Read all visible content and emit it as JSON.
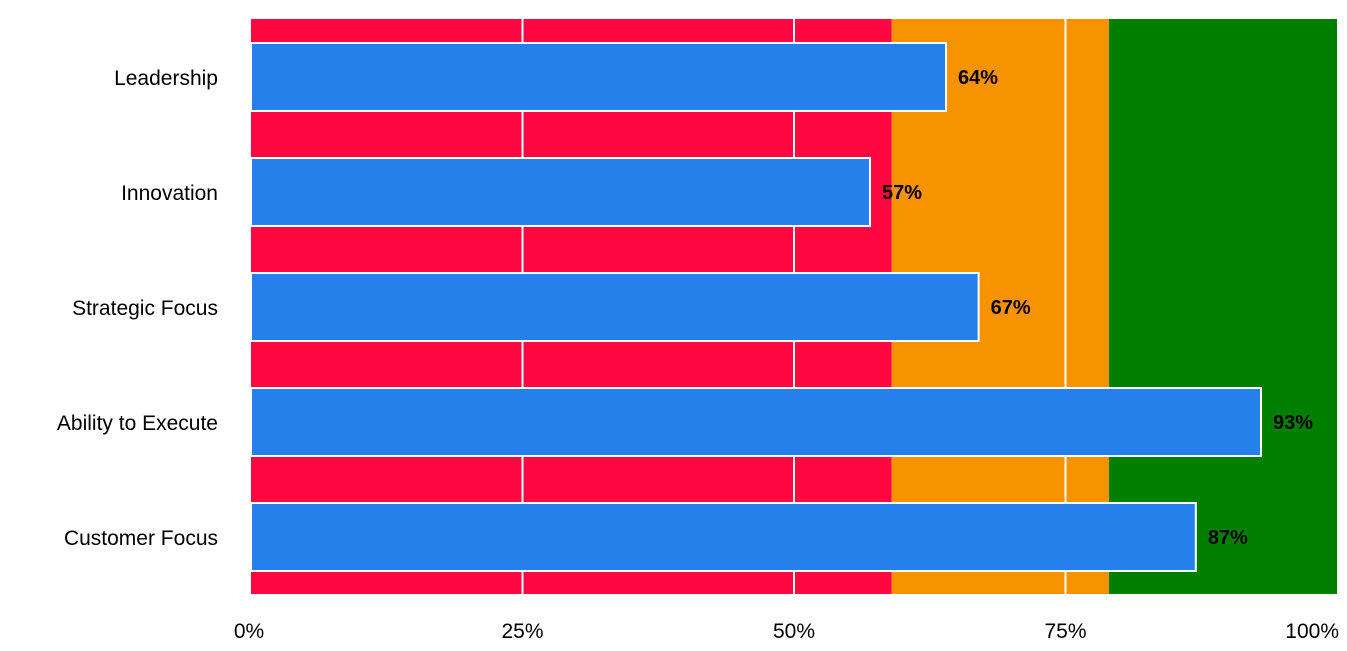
{
  "chart_data": {
    "type": "bar",
    "orientation": "horizontal",
    "title": "",
    "xlabel": "",
    "ylabel": "",
    "categories": [
      "Leadership",
      "Innovation",
      "Strategic Focus",
      "Ability to Execute",
      "Customer Focus"
    ],
    "values": [
      64,
      57,
      67,
      93,
      87
    ],
    "value_labels": [
      "64%",
      "57%",
      "67%",
      "93%",
      "87%"
    ],
    "xlim": [
      0,
      100
    ],
    "xticks": [
      0,
      25,
      50,
      75,
      100
    ],
    "xtick_labels": [
      "0%",
      "25%",
      "50%",
      "75%",
      "100%"
    ],
    "grid": true,
    "legend": "none",
    "bands": [
      {
        "from": 0,
        "to": 59,
        "color": "#ff0740"
      },
      {
        "from": 59,
        "to": 79,
        "color": "#f79200"
      },
      {
        "from": 79,
        "to": 100,
        "color": "#007f00"
      }
    ],
    "bar_color": "#2680eb"
  }
}
